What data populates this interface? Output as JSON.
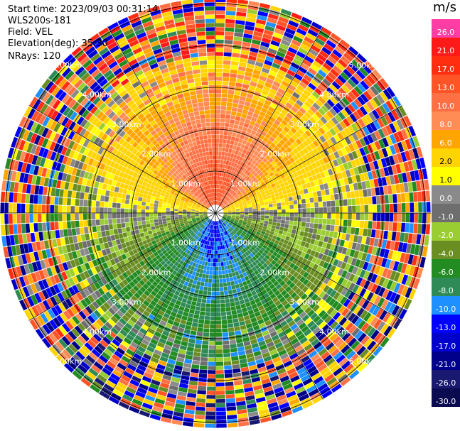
{
  "header": {
    "start_time": "Start time: 2023/09/03 00:31:14",
    "site": "WLS200s-181",
    "field": "Field: VEL",
    "elevation": "Elevation(deg): 35.30",
    "nrays": "NRays: 120"
  },
  "colorbar": {
    "unit": "m/s",
    "levels": [
      {
        "label": "26.0",
        "color": "#ff3ea5"
      },
      {
        "label": "21.0",
        "color": "#ff1a1a"
      },
      {
        "label": "17.0",
        "color": "#ff2e10"
      },
      {
        "label": "13.0",
        "color": "#ff5526"
      },
      {
        "label": "10.0",
        "color": "#ff7045"
      },
      {
        "label": "8.0",
        "color": "#ff8b55"
      },
      {
        "label": "6.0",
        "color": "#ffa500"
      },
      {
        "label": "2.0",
        "color": "#ffd400"
      },
      {
        "label": "1.0",
        "color": "#ffff00"
      },
      {
        "label": "0.0",
        "color": "#8a8a8a"
      },
      {
        "label": "-1.0",
        "color": "#6e6e6e"
      },
      {
        "label": "-2.0",
        "color": "#9acd32"
      },
      {
        "label": "-4.0",
        "color": "#6b8e23"
      },
      {
        "label": "-6.0",
        "color": "#228b22"
      },
      {
        "label": "-8.0",
        "color": "#2e8b57"
      },
      {
        "label": "-10.0",
        "color": "#1e90ff"
      },
      {
        "label": "-13.0",
        "color": "#0000ff"
      },
      {
        "label": "-17.0",
        "color": "#0000cd"
      },
      {
        "label": "-21.0",
        "color": "#00008b"
      },
      {
        "label": "-26.0",
        "color": "#191970"
      },
      {
        "label": "-30.0",
        "color": "#0a0a50"
      }
    ]
  },
  "range_ring_labels": [
    "1.00km",
    "2.00km",
    "3.00km",
    "4.00km",
    "5.00km"
  ],
  "chart_data": {
    "type": "heatmap",
    "description": "PPI velocity scan, 120 rays",
    "field": "VEL",
    "unit": "m/s",
    "rays": 120,
    "range_rings_km": [
      1,
      2,
      3,
      4,
      5
    ],
    "zones": [
      {
        "sector": "north",
        "velocity_ms": [
          8,
          13
        ]
      },
      {
        "sector": "north-near",
        "velocity_ms": [
          13,
          17
        ]
      },
      {
        "sector": "east-west-band",
        "velocity_ms": [
          1,
          2
        ]
      },
      {
        "sector": "south",
        "velocity_ms": [
          -6,
          -4
        ]
      },
      {
        "sector": "south-near",
        "velocity_ms": [
          -10,
          -8
        ]
      }
    ]
  }
}
